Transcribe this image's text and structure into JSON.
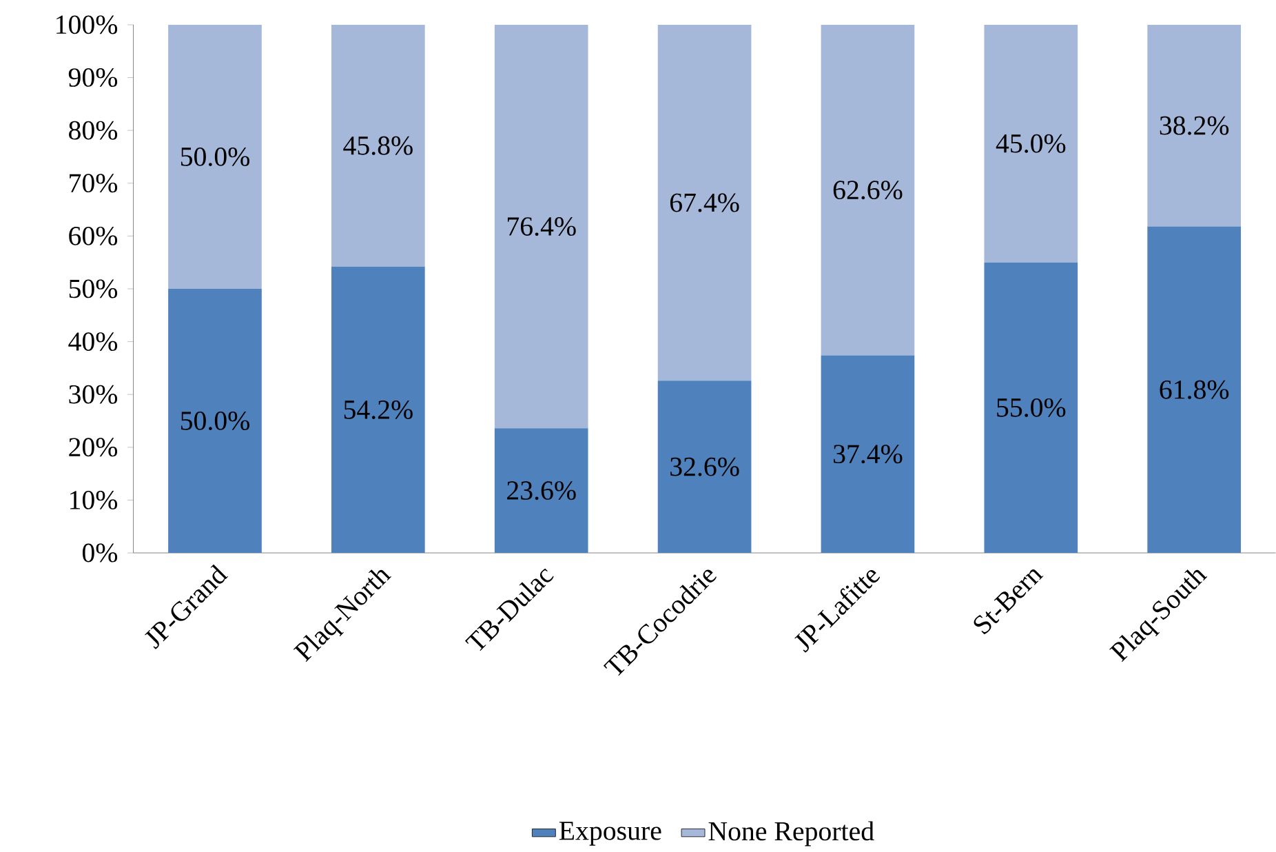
{
  "chart_data": {
    "type": "bar",
    "stacked": true,
    "categories": [
      "JP-Grand",
      "Plaq-North",
      "TB-Dulac",
      "TB-Cocodrie",
      "JP-Lafitte",
      "St-Bern",
      "Plaq-South"
    ],
    "series": [
      {
        "name": "Exposure",
        "color": "#4f81bd",
        "values": [
          50.0,
          54.2,
          23.6,
          32.6,
          37.4,
          55.0,
          61.8
        ],
        "value_labels": [
          "50.0%",
          "54.2%",
          "23.6%",
          "32.6%",
          "37.4%",
          "55.0%",
          "61.8%"
        ]
      },
      {
        "name": "None Reported",
        "color": "#a5b8d9",
        "values": [
          50.0,
          45.8,
          76.4,
          67.4,
          62.6,
          45.0,
          38.2
        ],
        "value_labels": [
          "50.0%",
          "45.8%",
          "76.4%",
          "67.4%",
          "62.6%",
          "45.0%",
          "38.2%"
        ]
      }
    ],
    "ylim": [
      0,
      100
    ],
    "yticks": [
      {
        "value": 0,
        "label": "0%"
      },
      {
        "value": 10,
        "label": "10%"
      },
      {
        "value": 20,
        "label": "20%"
      },
      {
        "value": 30,
        "label": "30%"
      },
      {
        "value": 40,
        "label": "40%"
      },
      {
        "value": 50,
        "label": "50%"
      },
      {
        "value": 60,
        "label": "60%"
      },
      {
        "value": 70,
        "label": "70%"
      },
      {
        "value": 80,
        "label": "80%"
      },
      {
        "value": 90,
        "label": "90%"
      },
      {
        "value": 100,
        "label": "100%"
      }
    ],
    "grid": false,
    "legend": "bottom"
  }
}
